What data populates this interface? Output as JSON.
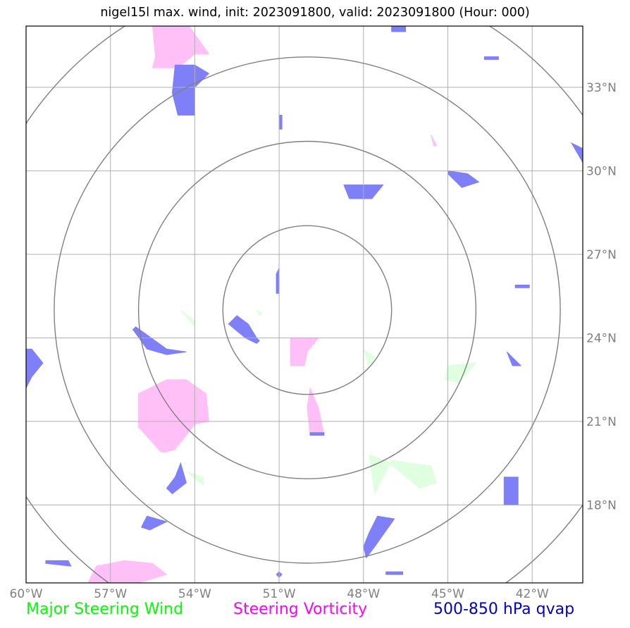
{
  "title": "nigel15l max. wind, init: 2023091800, valid: 2023091800 (Hour: 000)",
  "map": {
    "lon_range": [
      -60,
      -40.2
    ],
    "lat_range": [
      15.2,
      35.2
    ],
    "center": {
      "lon": -50,
      "lat": 25
    },
    "x_ticks": [
      {
        "lon": -60,
        "label": "60°W"
      },
      {
        "lon": -57,
        "label": "57°W"
      },
      {
        "lon": -54,
        "label": "54°W"
      },
      {
        "lon": -51,
        "label": "51°W"
      },
      {
        "lon": -48,
        "label": "48°W"
      },
      {
        "lon": -45,
        "label": "45°W"
      },
      {
        "lon": -42,
        "label": "42°W"
      }
    ],
    "y_ticks": [
      {
        "lat": 18,
        "label": "18°N"
      },
      {
        "lat": 21,
        "label": "21°N"
      },
      {
        "lat": 24,
        "label": "24°N"
      },
      {
        "lat": 27,
        "label": "27°N"
      },
      {
        "lat": 30,
        "label": "30°N"
      },
      {
        "lat": 33,
        "label": "33°N"
      }
    ],
    "range_rings_deg": [
      3,
      6,
      9,
      12
    ]
  },
  "colors": {
    "wind": "#00ff00",
    "vorticity": "#ff00ff",
    "qvap": "#0000cc",
    "wind_fill": "#e0ffe0",
    "vorticity_fill": "#ffc0f8",
    "qvap_fill": "#7f7ff8",
    "grid": "#b0b0b0",
    "rings": "#808080"
  },
  "legend": {
    "wind": "Major Steering Wind",
    "vorticity": "Steering Vorticity",
    "qvap": "500-850 hPa qvap"
  },
  "fields": {
    "wind": [
      [
        [
          -54.3,
          19.2
        ],
        [
          -53.7,
          18.7
        ],
        [
          -53.7,
          19.0
        ]
      ],
      [
        [
          -48.0,
          23.6
        ],
        [
          -47.8,
          23.0
        ],
        [
          -47.6,
          23.3
        ]
      ],
      [
        [
          -47.8,
          19.8
        ],
        [
          -47.2,
          19.6
        ],
        [
          -46.6,
          19.1
        ],
        [
          -46.0,
          18.6
        ],
        [
          -45.4,
          18.8
        ],
        [
          -45.6,
          19.4
        ],
        [
          -47.0,
          19.6
        ],
        [
          -47.6,
          18.4
        ]
      ],
      [
        [
          -45.0,
          23.0
        ],
        [
          -44.0,
          23.1
        ],
        [
          -44.6,
          22.4
        ],
        [
          -45.1,
          22.5
        ]
      ],
      [
        [
          -54.5,
          25.0
        ],
        [
          -54.0,
          24.6
        ],
        [
          -54.0,
          24.4
        ]
      ],
      [
        [
          -51.8,
          25.0
        ],
        [
          -51.6,
          24.9
        ],
        [
          -51.7,
          24.8
        ]
      ]
    ],
    "vorticity": [
      [
        [
          -55.5,
          35.2
        ],
        [
          -54.2,
          35.2
        ],
        [
          -53.5,
          34.2
        ],
        [
          -54.0,
          34.2
        ],
        [
          -54.6,
          33.7
        ],
        [
          -55.5,
          33.7
        ],
        [
          -55.4,
          34.1
        ]
      ],
      [
        [
          -55.0,
          22.5
        ],
        [
          -54.3,
          22.5
        ],
        [
          -53.6,
          22.0
        ],
        [
          -53.5,
          21.0
        ],
        [
          -54.0,
          20.9
        ],
        [
          -54.7,
          20.0
        ],
        [
          -55.0,
          19.9
        ],
        [
          -55.2,
          19.9
        ],
        [
          -56.0,
          20.8
        ],
        [
          -56.0,
          22.0
        ]
      ],
      [
        [
          -50.6,
          24.0
        ],
        [
          -50.0,
          24.0
        ],
        [
          -49.6,
          24.0
        ],
        [
          -50.0,
          23.5
        ],
        [
          -50.1,
          23.0
        ],
        [
          -50.6,
          23.0
        ]
      ],
      [
        [
          -49.9,
          22.2
        ],
        [
          -49.6,
          21.5
        ],
        [
          -49.4,
          20.5
        ],
        [
          -49.9,
          20.5
        ],
        [
          -50.0,
          21.5
        ],
        [
          -49.9,
          22.2
        ]
      ],
      [
        [
          -57.5,
          15.8
        ],
        [
          -56.5,
          16.0
        ],
        [
          -55.5,
          15.9
        ],
        [
          -55.0,
          15.5
        ],
        [
          -56.0,
          15.2
        ],
        [
          -57.8,
          15.2
        ]
      ],
      [
        [
          -45.6,
          31.3
        ],
        [
          -45.5,
          30.9
        ],
        [
          -45.4,
          30.9
        ]
      ]
    ],
    "qvap": [
      [
        [
          -54.7,
          33.8
        ],
        [
          -54.0,
          33.8
        ],
        [
          -53.5,
          33.5
        ],
        [
          -54.0,
          33.0
        ],
        [
          -54.0,
          32.0
        ],
        [
          -54.6,
          32.0
        ],
        [
          -54.8,
          32.8
        ]
      ],
      [
        [
          -52.8,
          24.5
        ],
        [
          -52.2,
          24.0
        ],
        [
          -51.8,
          23.8
        ],
        [
          -51.7,
          23.9
        ],
        [
          -51.8,
          24.0
        ],
        [
          -52.1,
          24.5
        ],
        [
          -52.5,
          24.8
        ]
      ],
      [
        [
          -56.1,
          24.4
        ],
        [
          -55.0,
          23.6
        ],
        [
          -54.3,
          23.5
        ],
        [
          -55.0,
          23.4
        ],
        [
          -55.7,
          23.6
        ],
        [
          -56.2,
          24.3
        ]
      ],
      [
        [
          -48.7,
          29.5
        ],
        [
          -47.3,
          29.5
        ],
        [
          -47.7,
          29.0
        ],
        [
          -48.5,
          29.0
        ]
      ],
      [
        [
          -45.0,
          30.0
        ],
        [
          -44.3,
          29.9
        ],
        [
          -43.9,
          29.6
        ],
        [
          -44.5,
          29.4
        ],
        [
          -45.0,
          29.9
        ]
      ],
      [
        [
          -59.8,
          23.6
        ],
        [
          -59.4,
          23.1
        ],
        [
          -59.8,
          22.6
        ],
        [
          -60.0,
          22.2
        ],
        [
          -60.0,
          23.6
        ]
      ],
      [
        [
          -40.6,
          31.0
        ],
        [
          -40.2,
          30.3
        ],
        [
          -40.2,
          30.8
        ]
      ],
      [
        [
          -54.5,
          19.5
        ],
        [
          -54.3,
          18.8
        ],
        [
          -54.8,
          18.4
        ],
        [
          -55.0,
          18.6
        ],
        [
          -54.7,
          19.0
        ]
      ],
      [
        [
          -47.5,
          17.6
        ],
        [
          -46.9,
          17.5
        ],
        [
          -47.6,
          16.5
        ],
        [
          -47.9,
          16.1
        ],
        [
          -48.0,
          16.5
        ],
        [
          -47.8,
          17.0
        ]
      ],
      [
        [
          -55.7,
          17.6
        ],
        [
          -55.0,
          17.4
        ],
        [
          -55.6,
          17.1
        ],
        [
          -55.9,
          17.2
        ]
      ],
      [
        [
          -43.0,
          19.0
        ],
        [
          -42.5,
          19.0
        ],
        [
          -42.5,
          18.0
        ],
        [
          -43.0,
          18.0
        ]
      ],
      [
        [
          -42.9,
          23.5
        ],
        [
          -42.7,
          23.0
        ],
        [
          -42.4,
          23.0
        ],
        [
          -42.9,
          23.5
        ]
      ],
      [
        [
          -59.3,
          16.0
        ],
        [
          -58.5,
          16.0
        ],
        [
          -58.4,
          15.8
        ],
        [
          -59.3,
          15.9
        ]
      ],
      [
        [
          -51.1,
          26.3
        ],
        [
          -51.0,
          26.5
        ],
        [
          -51.0,
          25.6
        ],
        [
          -51.1,
          25.6
        ]
      ],
      [
        [
          -49.9,
          20.6
        ],
        [
          -49.4,
          20.6
        ],
        [
          -49.4,
          20.5
        ],
        [
          -49.9,
          20.5
        ]
      ],
      [
        [
          -47.2,
          15.6
        ],
        [
          -46.6,
          15.6
        ],
        [
          -46.6,
          15.5
        ],
        [
          -47.2,
          15.5
        ]
      ],
      [
        [
          -51.0,
          15.6
        ],
        [
          -50.9,
          15.5
        ],
        [
          -51.0,
          15.4
        ],
        [
          -51.1,
          15.5
        ]
      ],
      [
        [
          -42.6,
          25.9
        ],
        [
          -42.1,
          25.9
        ],
        [
          -42.1,
          25.8
        ],
        [
          -42.6,
          25.8
        ]
      ],
      [
        [
          -51.0,
          32.0
        ],
        [
          -50.9,
          32.0
        ],
        [
          -50.9,
          31.5
        ],
        [
          -51.0,
          31.5
        ]
      ],
      [
        [
          -43.7,
          34.1
        ],
        [
          -43.2,
          34.1
        ],
        [
          -43.2,
          34.0
        ],
        [
          -43.7,
          34.0
        ]
      ],
      [
        [
          -47.0,
          35.2
        ],
        [
          -46.5,
          35.2
        ],
        [
          -46.5,
          35.0
        ],
        [
          -47.0,
          35.0
        ]
      ]
    ]
  }
}
